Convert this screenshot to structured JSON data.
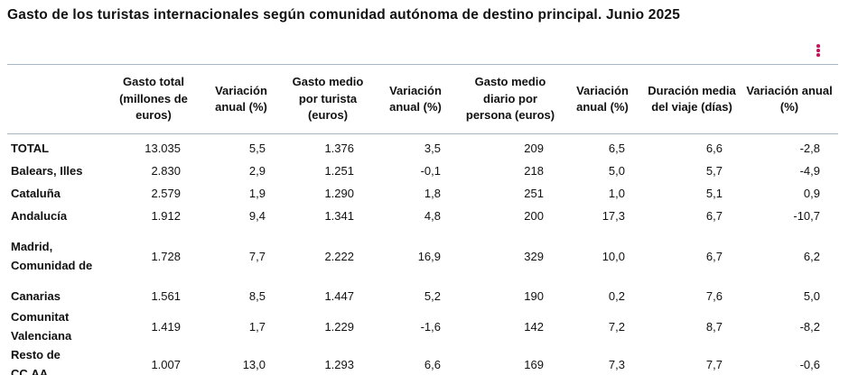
{
  "title": "Gasto de los turistas internacionales según comunidad autónoma de destino principal. Junio 2025",
  "menu_icon": "kebab-vertical-icon",
  "accent_color": "#c2185b",
  "table": {
    "headers": [
      "",
      "Gasto total (millones de euros)",
      "Variación anual (%)",
      "Gasto medio por turista (euros)",
      "Variación anual (%)",
      "Gasto medio diario por persona (euros)",
      "Variación anual (%)",
      "Duración media del viaje (días)",
      "Variación anual (%)"
    ],
    "rows": [
      [
        "TOTAL",
        "13.035",
        "5,5",
        "1.376",
        "3,5",
        "209",
        "6,5",
        "6,6",
        "-2,8"
      ],
      [
        "Balears, Illes",
        "2.830",
        "2,9",
        "1.251",
        "-0,1",
        "218",
        "5,0",
        "5,7",
        "-4,9"
      ],
      [
        "Cataluña",
        "2.579",
        "1,9",
        "1.290",
        "1,8",
        "251",
        "1,0",
        "5,1",
        "0,9"
      ],
      [
        "Andalucía",
        "1.912",
        "9,4",
        "1.341",
        "4,8",
        "200",
        "17,3",
        "6,7",
        "-10,7"
      ],
      [
        "Madrid, Comunidad de",
        "1.728",
        "7,7",
        "2.222",
        "16,9",
        "329",
        "10,0",
        "6,7",
        "6,2"
      ],
      [
        "Canarias",
        "1.561",
        "8,5",
        "1.447",
        "5,2",
        "190",
        "0,2",
        "7,6",
        "5,0"
      ],
      [
        "Comunitat Valenciana",
        "1.419",
        "1,7",
        "1.229",
        "-1,6",
        "142",
        "7,2",
        "8,7",
        "-8,2"
      ],
      [
        "Resto de CC.AA.",
        "1.007",
        "13,0",
        "1.293",
        "6,6",
        "169",
        "7,3",
        "7,7",
        "-0,6"
      ]
    ]
  }
}
